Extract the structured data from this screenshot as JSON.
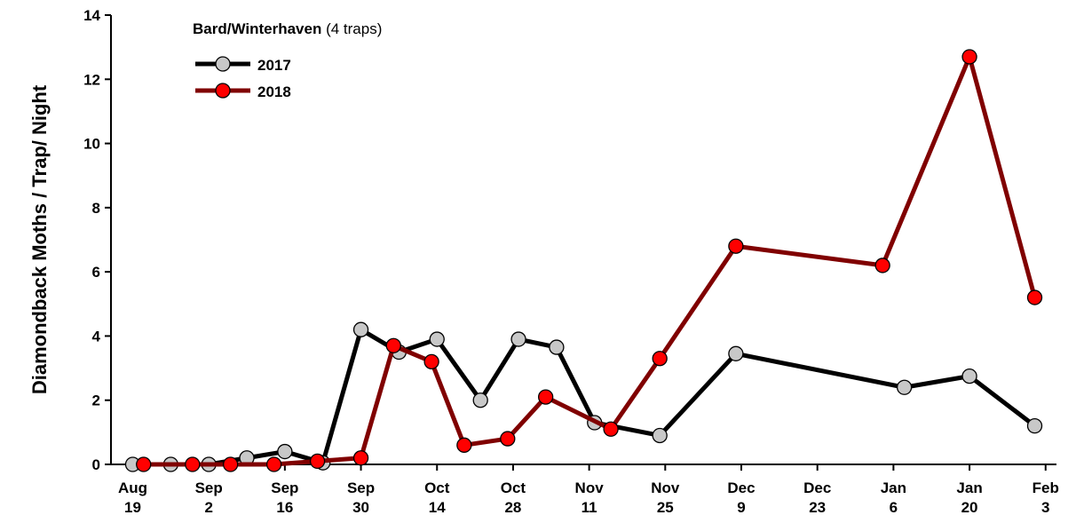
{
  "chart_data": {
    "type": "line",
    "title": "Bard/Winterhaven",
    "subtitle": "(4 traps)",
    "y_label": "Diamondback Moths / Trap/ Night",
    "xlim": [
      -4,
      170
    ],
    "xticks": [
      {
        "value": 0,
        "label": "Aug 19"
      },
      {
        "value": 14,
        "label": "Sep 2"
      },
      {
        "value": 28,
        "label": "Sep 16"
      },
      {
        "value": 42,
        "label": "Sep 30"
      },
      {
        "value": 56,
        "label": "Oct 14"
      },
      {
        "value": 70,
        "label": "Oct 28"
      },
      {
        "value": 84,
        "label": "Nov 11"
      },
      {
        "value": 98,
        "label": "Nov 25"
      },
      {
        "value": 112,
        "label": "Dec 9"
      },
      {
        "value": 126,
        "label": "Dec 23"
      },
      {
        "value": 140,
        "label": "Jan 6"
      },
      {
        "value": 154,
        "label": "Jan 20"
      },
      {
        "value": 168,
        "label": "Feb 3"
      }
    ],
    "ylim": [
      0,
      14
    ],
    "yticks": [
      0,
      2,
      4,
      6,
      8,
      10,
      12,
      14
    ],
    "grid": false,
    "legend": "upper left",
    "series": [
      {
        "name": "2017",
        "color": "#000000",
        "marker_color": "#c8c8c8",
        "x": [
          0,
          7,
          14,
          21,
          28,
          35,
          42,
          49,
          56,
          64,
          71,
          78,
          85,
          97,
          111,
          142,
          154,
          166
        ],
        "values": [
          0,
          0,
          0,
          0.2,
          0.4,
          0.05,
          4.2,
          3.5,
          3.9,
          2.0,
          3.9,
          3.65,
          1.3,
          0.9,
          3.45,
          2.4,
          2.75,
          1.2
        ]
      },
      {
        "name": "2018",
        "color": "#800000",
        "marker_color": "#ff0000",
        "x": [
          2,
          11,
          18,
          26,
          34,
          42,
          48,
          55,
          61,
          69,
          76,
          88,
          97,
          111,
          138,
          154,
          166
        ],
        "values": [
          0,
          0,
          0,
          0,
          0.1,
          0.2,
          3.7,
          3.2,
          0.6,
          0.8,
          2.1,
          1.1,
          3.3,
          6.8,
          6.2,
          12.7,
          5.2
        ]
      }
    ]
  }
}
